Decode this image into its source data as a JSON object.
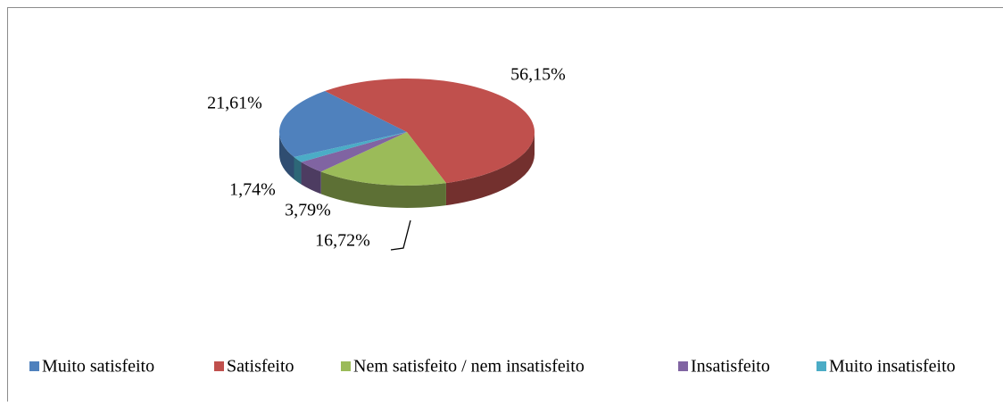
{
  "chart_data": {
    "type": "pie",
    "categories": [
      "Muito satisfeito",
      "Satisfeito",
      "Nem satisfeito / nem insatisfeito",
      "Insatisfeito",
      "Muito insatisfeito"
    ],
    "values": [
      21.61,
      56.15,
      16.72,
      3.79,
      1.74
    ],
    "value_labels": [
      "21,61%",
      "56,15%",
      "16,72%",
      "3,79%",
      "1,74%"
    ],
    "colors": [
      "#4f81bd",
      "#c0504d",
      "#9bbb59",
      "#8064a2",
      "#4bacc6"
    ],
    "legend": "bottom"
  }
}
